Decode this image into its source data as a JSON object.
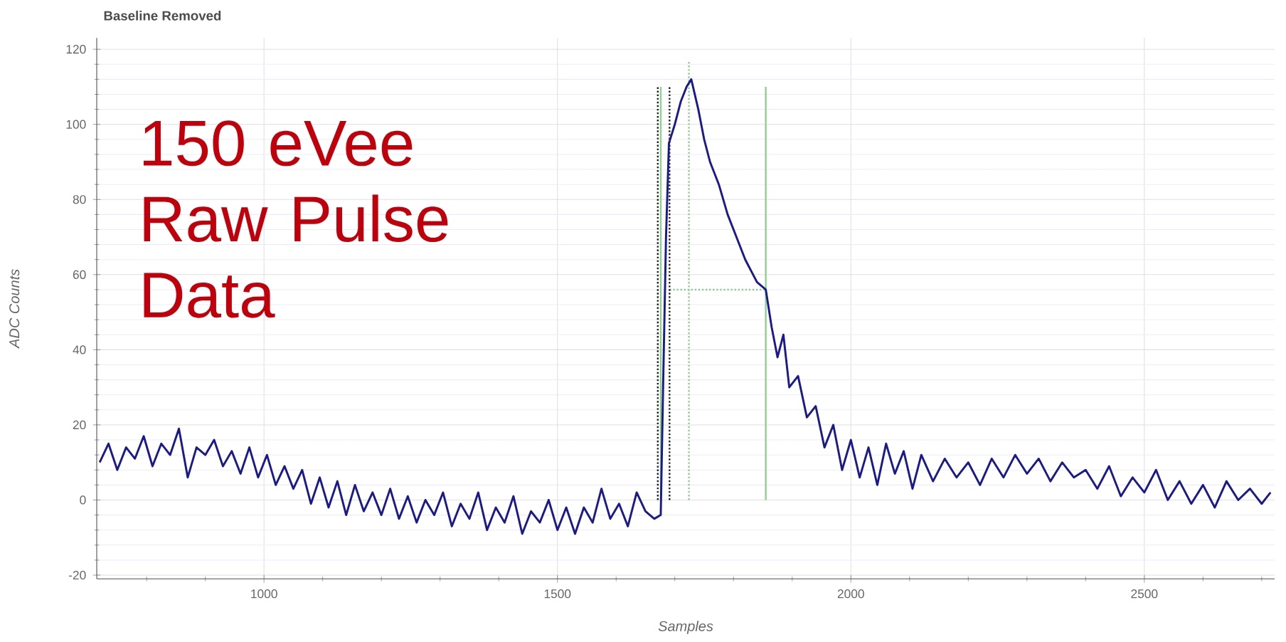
{
  "chart_data": {
    "type": "line",
    "title": "Baseline Removed",
    "xlabel": "Samples",
    "ylabel": "ADC Counts",
    "annotations": [
      "150 eVee Raw Pulse Data"
    ],
    "xlim": [
      715,
      2722
    ],
    "ylim": [
      -21,
      123
    ],
    "xticks": [
      {
        "value": 800,
        "label": null
      },
      {
        "value": 900,
        "label": null
      },
      1000,
      {
        "value": 1100,
        "label": null
      },
      {
        "value": 1200,
        "label": null
      },
      {
        "value": 1300,
        "label": null
      },
      {
        "value": 1400,
        "label": null
      },
      1500,
      {
        "value": 1600,
        "label": null
      },
      {
        "value": 1700,
        "label": null
      },
      {
        "value": 1800,
        "label": null
      },
      {
        "value": 1900,
        "label": null
      },
      2000,
      {
        "value": 2100,
        "label": null
      },
      {
        "value": 2200,
        "label": null
      },
      {
        "value": 2300,
        "label": null
      },
      {
        "value": 2400,
        "label": null
      },
      2500,
      {
        "value": 2600,
        "label": null
      },
      {
        "value": 2700,
        "label": null
      }
    ],
    "yticks": [
      -20,
      {
        "value": -16,
        "label": null
      },
      {
        "value": -12,
        "label": null
      },
      {
        "value": -8,
        "label": null
      },
      {
        "value": -4,
        "label": null
      },
      0,
      {
        "value": 4,
        "label": null
      },
      {
        "value": 8,
        "label": null
      },
      {
        "value": 12,
        "label": null
      },
      {
        "value": 16,
        "label": null
      },
      20,
      {
        "value": 24,
        "label": null
      },
      {
        "value": 28,
        "label": null
      },
      {
        "value": 32,
        "label": null
      },
      {
        "value": 36,
        "label": null
      },
      40,
      {
        "value": 44,
        "label": null
      },
      {
        "value": 48,
        "label": null
      },
      {
        "value": 52,
        "label": null
      },
      {
        "value": 56,
        "label": null
      },
      60,
      {
        "value": 64,
        "label": null
      },
      {
        "value": 68,
        "label": null
      },
      {
        "value": 72,
        "label": null
      },
      {
        "value": 76,
        "label": null
      },
      80,
      {
        "value": 84,
        "label": null
      },
      {
        "value": 88,
        "label": null
      },
      {
        "value": 92,
        "label": null
      },
      {
        "value": 96,
        "label": null
      },
      100,
      {
        "value": 104,
        "label": null
      },
      {
        "value": 108,
        "label": null
      },
      {
        "value": 112,
        "label": null
      },
      {
        "value": 116,
        "label": null
      },
      120
    ],
    "grid": true,
    "line_style": "solid",
    "series": [
      {
        "color": "#8fcf8f",
        "line_style": "solid",
        "x": [
          1676,
          1676
        ],
        "values": [
          0,
          110
        ]
      },
      {
        "color": "#8fcf8f",
        "line_style": "dotted",
        "x": [
          1724,
          1724
        ],
        "values": [
          0,
          117
        ]
      },
      {
        "color": "#8fcf8f",
        "line_style": "solid",
        "x": [
          1855,
          1855
        ],
        "values": [
          0,
          110
        ]
      },
      {
        "color": "#8fcf8f",
        "line_style": "dotted",
        "x": [
          1691,
          1855
        ],
        "values": [
          56,
          56
        ]
      },
      {
        "color": "#222222",
        "line_style": "dotted",
        "x": [
          1671,
          1671
        ],
        "values": [
          0,
          110
        ]
      },
      {
        "color": "#222222",
        "line_style": "dotted",
        "x": [
          1691,
          1691
        ],
        "values": [
          0,
          110
        ]
      },
      {
        "color": "#1a1a8c",
        "x": [
          720,
          735,
          750,
          765,
          780,
          795,
          810,
          825,
          840,
          855,
          870,
          885,
          900,
          915,
          930,
          945,
          960,
          975,
          990,
          1005,
          1020,
          1035,
          1050,
          1065,
          1080,
          1095,
          1110,
          1125,
          1140,
          1155,
          1170,
          1185,
          1200,
          1215,
          1230,
          1245,
          1260,
          1275,
          1290,
          1305,
          1320,
          1335,
          1350,
          1365,
          1380,
          1395,
          1410,
          1425,
          1440,
          1455,
          1470,
          1485,
          1500,
          1515,
          1530,
          1545,
          1560,
          1575,
          1590,
          1605,
          1620,
          1635,
          1650,
          1665,
          1676,
          1680,
          1685,
          1690,
          1700,
          1710,
          1720,
          1728,
          1740,
          1750,
          1760,
          1775,
          1790,
          1805,
          1820,
          1840,
          1855,
          1865,
          1875,
          1885,
          1895,
          1910,
          1925,
          1940,
          1955,
          1970,
          1985,
          2000,
          2015,
          2030,
          2045,
          2060,
          2075,
          2090,
          2105,
          2120,
          2140,
          2160,
          2180,
          2200,
          2220,
          2240,
          2260,
          2280,
          2300,
          2320,
          2340,
          2360,
          2380,
          2400,
          2420,
          2440,
          2460,
          2480,
          2500,
          2520,
          2540,
          2560,
          2580,
          2600,
          2620,
          2640,
          2660,
          2680,
          2700,
          2715
        ],
        "values": [
          10,
          15,
          8,
          14,
          11,
          17,
          9,
          15,
          12,
          19,
          6,
          14,
          12,
          16,
          9,
          13,
          7,
          14,
          6,
          12,
          4,
          9,
          3,
          8,
          -1,
          6,
          -2,
          5,
          -4,
          4,
          -3,
          2,
          -4,
          3,
          -5,
          1,
          -6,
          0,
          -4,
          2,
          -7,
          -1,
          -5,
          2,
          -8,
          -2,
          -6,
          1,
          -9,
          -3,
          -6,
          0,
          -8,
          -2,
          -9,
          -2,
          -6,
          3,
          -5,
          -1,
          -7,
          2,
          -3,
          -5,
          -4,
          30,
          70,
          95,
          100,
          106,
          110,
          112,
          104,
          96,
          90,
          84,
          76,
          70,
          64,
          58,
          56,
          46,
          38,
          44,
          30,
          33,
          22,
          25,
          14,
          20,
          8,
          16,
          6,
          14,
          4,
          15,
          7,
          13,
          3,
          12,
          5,
          11,
          6,
          10,
          4,
          11,
          6,
          12,
          7,
          11,
          5,
          10,
          6,
          8,
          3,
          9,
          1,
          6,
          2,
          8,
          0,
          5,
          -1,
          4,
          -2,
          5,
          0,
          3,
          -1,
          2
        ]
      }
    ]
  }
}
